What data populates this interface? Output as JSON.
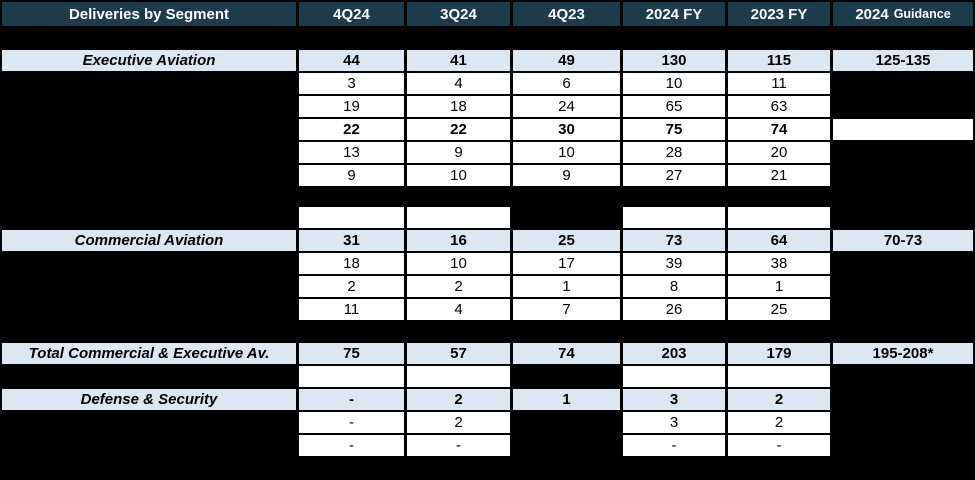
{
  "table": {
    "title": "Deliveries by Segment",
    "columns": [
      "4Q24",
      "3Q24",
      "4Q23",
      "2024 FY",
      "2023 FY"
    ],
    "guidance_header": {
      "year": "2024",
      "label": "Guidance"
    },
    "colors": {
      "header_navy": "#1c3b4d",
      "row_blue": "#dce7f4",
      "cell_white": "#ffffff",
      "background": "#000000"
    },
    "sections": [
      {
        "name": "Executive Aviation",
        "totals": [
          "44",
          "41",
          "49",
          "130",
          "115"
        ],
        "guidance": "125-135",
        "rows": [
          [
            "3",
            "4",
            "6",
            "10",
            "11"
          ],
          [
            "19",
            "18",
            "24",
            "65",
            "63"
          ],
          [
            "22",
            "22",
            "30",
            "75",
            "74"
          ],
          [
            "13",
            "9",
            "10",
            "28",
            "20"
          ],
          [
            "9",
            "10",
            "9",
            "27",
            "21"
          ]
        ]
      },
      {
        "name": "Commercial Aviation",
        "totals": [
          "31",
          "16",
          "25",
          "73",
          "64"
        ],
        "guidance": "70-73",
        "rows": [
          [
            "18",
            "10",
            "17",
            "39",
            "38"
          ],
          [
            "2",
            "2",
            "1",
            "8",
            "1"
          ],
          [
            "11",
            "4",
            "7",
            "26",
            "25"
          ]
        ]
      },
      {
        "name": "Total Commercial & Executive Av.",
        "totals": [
          "75",
          "57",
          "74",
          "203",
          "179"
        ],
        "guidance": "195-208*",
        "rows": []
      },
      {
        "name": "Defense & Security",
        "totals": [
          "-",
          "2",
          "1",
          "3",
          "2"
        ],
        "guidance": null,
        "rows": [
          [
            "-",
            "2",
            null,
            "3",
            "2"
          ],
          [
            "-",
            "-",
            null,
            "-",
            "-"
          ]
        ]
      }
    ]
  }
}
